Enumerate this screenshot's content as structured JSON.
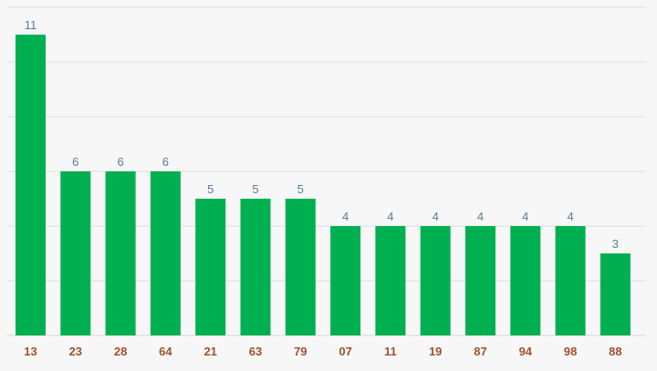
{
  "chart_data": {
    "type": "bar",
    "categories": [
      "13",
      "23",
      "28",
      "64",
      "21",
      "63",
      "79",
      "07",
      "11",
      "19",
      "87",
      "94",
      "98",
      "88"
    ],
    "values": [
      11,
      6,
      6,
      6,
      5,
      5,
      5,
      4,
      4,
      4,
      4,
      4,
      4,
      3
    ],
    "ylim": [
      0,
      12
    ],
    "grid": true,
    "colors": {
      "bar": "#00b050",
      "grid": "#dcdcdc",
      "value_label": "#5a7d98",
      "category_label": "#a0522d"
    }
  }
}
